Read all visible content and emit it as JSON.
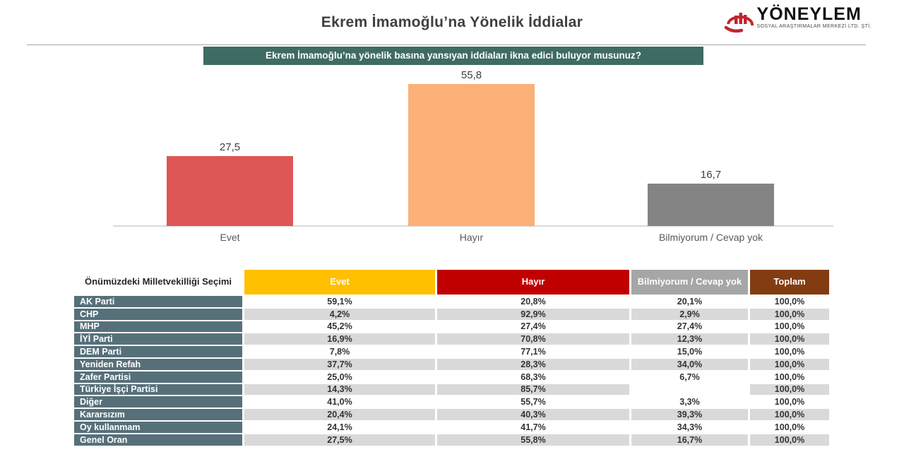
{
  "page": {
    "title": "Ekrem İmamoğlu’na Yönelik İddialar"
  },
  "logo": {
    "name": "YÖNEYLEM",
    "subtitle": "SOSYAL ARAŞTIRMALAR MERKEZİ LTD. ŞTİ.",
    "color": "#c0272d"
  },
  "question_banner": {
    "text": "Ekrem İmamoğlu’na yönelik basına yansıyan iddiaları ikna edici buluyor musunuz?",
    "bg": "#3e6b63"
  },
  "chart_data": {
    "type": "bar",
    "title": "Ekrem İmamoğlu’na yönelik basına yansıyan iddiaları ikna edici buluyor musunuz?",
    "categories": [
      "Evet",
      "Hayır",
      "Bilmiyorum / Cevap yok"
    ],
    "values": [
      27.5,
      55.8,
      16.7
    ],
    "value_labels": [
      "27,5",
      "55,8",
      "16,7"
    ],
    "colors": [
      "#de5656",
      "#fbb078",
      "#848484"
    ],
    "xlabel": "",
    "ylabel": "",
    "ylim": [
      0,
      60
    ],
    "grid": false,
    "legend": false
  },
  "table": {
    "header": {
      "label": "Önümüzdeki Milletvekilliği Seçimi",
      "columns": [
        {
          "label": "Evet",
          "bg": "#ffc000"
        },
        {
          "label": "Hayır",
          "bg": "#c00000"
        },
        {
          "label": "Bilmiyorum / Cevap yok",
          "bg": "#a6a6a6"
        },
        {
          "label": "Toplam",
          "bg": "#833c12"
        }
      ]
    },
    "rows": [
      {
        "label": "AK Parti",
        "values": [
          "59,1%",
          "20,8%",
          "20,1%",
          "100,0%"
        ]
      },
      {
        "label": "CHP",
        "values": [
          "4,2%",
          "92,9%",
          "2,9%",
          "100,0%"
        ]
      },
      {
        "label": "MHP",
        "values": [
          "45,2%",
          "27,4%",
          "27,4%",
          "100,0%"
        ]
      },
      {
        "label": "İYİ Parti",
        "values": [
          "16,9%",
          "70,8%",
          "12,3%",
          "100,0%"
        ]
      },
      {
        "label": "DEM Parti",
        "values": [
          "7,8%",
          "77,1%",
          "15,0%",
          "100,0%"
        ]
      },
      {
        "label": "Yeniden Refah",
        "values": [
          "37,7%",
          "28,3%",
          "34,0%",
          "100,0%"
        ]
      },
      {
        "label": "Zafer Partisi",
        "values": [
          "25,0%",
          "68,3%",
          "6,7%",
          "100,0%"
        ]
      },
      {
        "label": "Türkiye İşçi Partisi",
        "values": [
          "14,3%",
          "85,7%",
          "",
          "100,0%"
        ]
      },
      {
        "label": "Diğer",
        "values": [
          "41,0%",
          "55,7%",
          "3,3%",
          "100,0%"
        ]
      },
      {
        "label": "Kararsızım",
        "values": [
          "20,4%",
          "40,3%",
          "39,3%",
          "100,0%"
        ]
      },
      {
        "label": "Oy kullanmam",
        "values": [
          "24,1%",
          "41,7%",
          "34,3%",
          "100,0%"
        ]
      },
      {
        "label": "Genel Oran",
        "values": [
          "27,5%",
          "55,8%",
          "16,7%",
          "100,0%"
        ]
      }
    ]
  }
}
